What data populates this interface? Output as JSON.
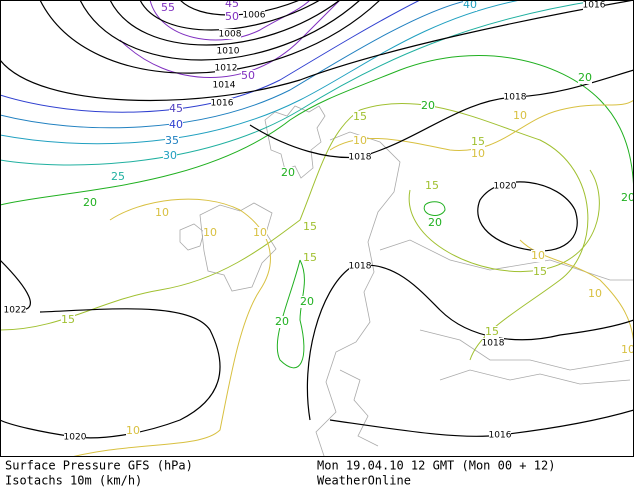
{
  "isobar_labels": [
    1006,
    1008,
    1010,
    1012,
    1014,
    1016,
    1016,
    1018,
    1018,
    1020,
    1018,
    1022,
    1018,
    1020,
    1016
  ],
  "isotach_labels": [
    55,
    45,
    50,
    40,
    50,
    45,
    40,
    35,
    30,
    25,
    20,
    10,
    10,
    10,
    15,
    15,
    20,
    20,
    15,
    10,
    20,
    15,
    10,
    15,
    10,
    15,
    20,
    20,
    10,
    20,
    10,
    15,
    10,
    15,
    20,
    10
  ],
  "footer": {
    "left": [
      "Surface Pressure GFS (hPa)",
      "Isotachs 10m (km/h)"
    ],
    "right": [
      "Mon 19.04.10 12 GMT (Mon 00 + 12)",
      "WeatherOnline"
    ]
  }
}
